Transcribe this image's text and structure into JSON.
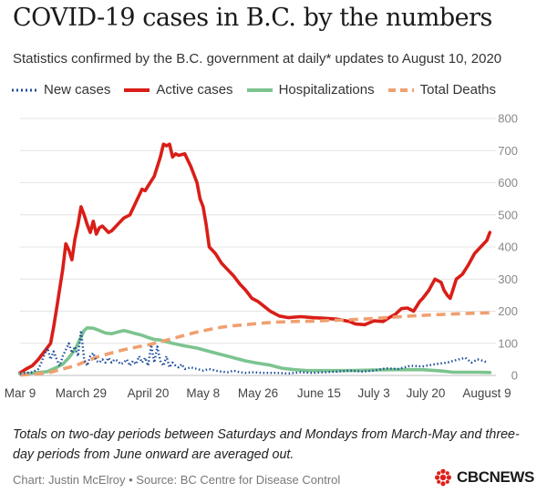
{
  "title": "COVID-19 cases in B.C. by the numbers",
  "subtitle": "Statistics confirmed by the B.C. government at daily* updates to August 10, 2020",
  "legend": [
    {
      "label": "New cases",
      "icon": "dotted-line-icon",
      "color": "#1f4e9e"
    },
    {
      "label": "Active cases",
      "icon": "solid-line-icon",
      "color": "#d91e18"
    },
    {
      "label": "Hospitalizations",
      "icon": "solid-line-icon",
      "color": "#7cc48f"
    },
    {
      "label": "Total Deaths",
      "icon": "dashed-line-icon",
      "color": "#f0a070"
    }
  ],
  "note": "Totals on two-day periods between Saturdays and Mondays from March-May and three-day periods from June onward are averaged out.",
  "credit": "Chart: Justin McElroy • Source: BC Centre for Disease Control",
  "logo": {
    "text": "CBCNEWS",
    "icon": "cbc-gem-icon",
    "color": "#e0201b"
  },
  "chart_data": {
    "type": "line",
    "title": "COVID-19 cases in B.C. by the numbers",
    "xlabel": "",
    "ylabel": "",
    "xlim": [
      0,
      156
    ],
    "ylim": [
      0,
      800
    ],
    "grid": true,
    "legend_position": "top",
    "x_ticks": [
      {
        "day": 0,
        "label": "Mar 9"
      },
      {
        "day": 20,
        "label": "March 29"
      },
      {
        "day": 42,
        "label": "April 20"
      },
      {
        "day": 60,
        "label": "May 8"
      },
      {
        "day": 78,
        "label": "May 26"
      },
      {
        "day": 98,
        "label": "June 15"
      },
      {
        "day": 116,
        "label": "July 3"
      },
      {
        "day": 133,
        "label": "July 20"
      },
      {
        "day": 153,
        "label": "August 9"
      }
    ],
    "y_ticks": [
      0,
      100,
      200,
      300,
      400,
      500,
      600,
      700,
      800
    ],
    "series": [
      {
        "name": "Active cases",
        "color": "#d91e18",
        "style": "solid",
        "points": [
          [
            0,
            8
          ],
          [
            2,
            20
          ],
          [
            4,
            30
          ],
          [
            6,
            50
          ],
          [
            8,
            75
          ],
          [
            10,
            100
          ],
          [
            11,
            150
          ],
          [
            12,
            210
          ],
          [
            13,
            270
          ],
          [
            14,
            330
          ],
          [
            15,
            410
          ],
          [
            16,
            390
          ],
          [
            17,
            360
          ],
          [
            18,
            425
          ],
          [
            19,
            470
          ],
          [
            20,
            525
          ],
          [
            21,
            500
          ],
          [
            22,
            470
          ],
          [
            23,
            445
          ],
          [
            24,
            480
          ],
          [
            25,
            440
          ],
          [
            26,
            460
          ],
          [
            27,
            465
          ],
          [
            28,
            455
          ],
          [
            29,
            445
          ],
          [
            30,
            450
          ],
          [
            32,
            470
          ],
          [
            34,
            490
          ],
          [
            36,
            500
          ],
          [
            38,
            540
          ],
          [
            40,
            580
          ],
          [
            41,
            575
          ],
          [
            42,
            590
          ],
          [
            44,
            620
          ],
          [
            46,
            680
          ],
          [
            47,
            720
          ],
          [
            48,
            715
          ],
          [
            49,
            720
          ],
          [
            50,
            680
          ],
          [
            51,
            690
          ],
          [
            52,
            685
          ],
          [
            54,
            690
          ],
          [
            55,
            670
          ],
          [
            56,
            650
          ],
          [
            58,
            600
          ],
          [
            59,
            550
          ],
          [
            60,
            525
          ],
          [
            61,
            470
          ],
          [
            62,
            400
          ],
          [
            64,
            380
          ],
          [
            66,
            350
          ],
          [
            68,
            330
          ],
          [
            70,
            310
          ],
          [
            72,
            285
          ],
          [
            74,
            265
          ],
          [
            76,
            240
          ],
          [
            78,
            230
          ],
          [
            80,
            215
          ],
          [
            82,
            200
          ],
          [
            85,
            185
          ],
          [
            88,
            180
          ],
          [
            92,
            183
          ],
          [
            96,
            180
          ],
          [
            100,
            178
          ],
          [
            104,
            175
          ],
          [
            108,
            168
          ],
          [
            110,
            160
          ],
          [
            113,
            158
          ],
          [
            116,
            170
          ],
          [
            119,
            168
          ],
          [
            121,
            180
          ],
          [
            123,
            190
          ],
          [
            125,
            208
          ],
          [
            127,
            210
          ],
          [
            129,
            200
          ],
          [
            131,
            230
          ],
          [
            132,
            240
          ],
          [
            134,
            265
          ],
          [
            136,
            300
          ],
          [
            138,
            290
          ],
          [
            139,
            265
          ],
          [
            140,
            250
          ],
          [
            141,
            240
          ],
          [
            142,
            270
          ],
          [
            143,
            300
          ],
          [
            145,
            315
          ],
          [
            147,
            345
          ],
          [
            149,
            380
          ],
          [
            151,
            400
          ],
          [
            153,
            420
          ],
          [
            154,
            445
          ]
        ]
      },
      {
        "name": "Hospitalizations",
        "color": "#7cc48f",
        "style": "solid",
        "points": [
          [
            0,
            4
          ],
          [
            5,
            8
          ],
          [
            9,
            12
          ],
          [
            12,
            25
          ],
          [
            14,
            35
          ],
          [
            16,
            55
          ],
          [
            18,
            80
          ],
          [
            19,
            100
          ],
          [
            20,
            120
          ],
          [
            21,
            140
          ],
          [
            22,
            148
          ],
          [
            24,
            147
          ],
          [
            26,
            140
          ],
          [
            28,
            132
          ],
          [
            30,
            130
          ],
          [
            32,
            135
          ],
          [
            34,
            140
          ],
          [
            36,
            135
          ],
          [
            38,
            130
          ],
          [
            40,
            125
          ],
          [
            42,
            118
          ],
          [
            44,
            112
          ],
          [
            46,
            110
          ],
          [
            50,
            100
          ],
          [
            54,
            92
          ],
          [
            58,
            85
          ],
          [
            62,
            75
          ],
          [
            66,
            65
          ],
          [
            70,
            55
          ],
          [
            74,
            45
          ],
          [
            78,
            38
          ],
          [
            82,
            32
          ],
          [
            86,
            22
          ],
          [
            90,
            18
          ],
          [
            94,
            15
          ],
          [
            100,
            15
          ],
          [
            108,
            15
          ],
          [
            116,
            17
          ],
          [
            124,
            18
          ],
          [
            132,
            18
          ],
          [
            138,
            14
          ],
          [
            142,
            10
          ],
          [
            146,
            10
          ],
          [
            150,
            10
          ],
          [
            154,
            9
          ]
        ]
      },
      {
        "name": "Total Deaths",
        "color": "#f0a070",
        "style": "dashed",
        "points": [
          [
            0,
            1
          ],
          [
            6,
            5
          ],
          [
            10,
            10
          ],
          [
            14,
            20
          ],
          [
            18,
            30
          ],
          [
            22,
            45
          ],
          [
            26,
            60
          ],
          [
            30,
            70
          ],
          [
            34,
            80
          ],
          [
            38,
            88
          ],
          [
            42,
            95
          ],
          [
            46,
            105
          ],
          [
            50,
            115
          ],
          [
            54,
            125
          ],
          [
            58,
            135
          ],
          [
            62,
            143
          ],
          [
            66,
            150
          ],
          [
            70,
            155
          ],
          [
            74,
            158
          ],
          [
            78,
            162
          ],
          [
            84,
            166
          ],
          [
            90,
            168
          ],
          [
            96,
            169
          ],
          [
            104,
            172
          ],
          [
            112,
            175
          ],
          [
            120,
            180
          ],
          [
            128,
            185
          ],
          [
            136,
            189
          ],
          [
            144,
            192
          ],
          [
            150,
            194
          ],
          [
            154,
            195
          ]
        ]
      },
      {
        "name": "New cases",
        "color": "#1f4e9e",
        "style": "dotted",
        "points": [
          [
            0,
            5
          ],
          [
            2,
            8
          ],
          [
            4,
            10
          ],
          [
            5,
            15
          ],
          [
            6,
            20
          ],
          [
            7,
            40
          ],
          [
            8,
            65
          ],
          [
            9,
            85
          ],
          [
            10,
            50
          ],
          [
            11,
            75
          ],
          [
            12,
            50
          ],
          [
            13,
            30
          ],
          [
            14,
            60
          ],
          [
            15,
            80
          ],
          [
            16,
            100
          ],
          [
            17,
            70
          ],
          [
            18,
            90
          ],
          [
            19,
            60
          ],
          [
            20,
            140
          ],
          [
            21,
            50
          ],
          [
            22,
            30
          ],
          [
            23,
            60
          ],
          [
            24,
            70
          ],
          [
            25,
            45
          ],
          [
            26,
            40
          ],
          [
            27,
            50
          ],
          [
            28,
            40
          ],
          [
            29,
            55
          ],
          [
            30,
            40
          ],
          [
            31,
            50
          ],
          [
            32,
            45
          ],
          [
            33,
            35
          ],
          [
            34,
            40
          ],
          [
            35,
            50
          ],
          [
            36,
            30
          ],
          [
            37,
            45
          ],
          [
            38,
            35
          ],
          [
            39,
            60
          ],
          [
            40,
            40
          ],
          [
            41,
            55
          ],
          [
            42,
            30
          ],
          [
            43,
            95
          ],
          [
            44,
            40
          ],
          [
            45,
            90
          ],
          [
            46,
            45
          ],
          [
            47,
            30
          ],
          [
            48,
            60
          ],
          [
            49,
            25
          ],
          [
            50,
            40
          ],
          [
            51,
            30
          ],
          [
            52,
            25
          ],
          [
            53,
            35
          ],
          [
            54,
            20
          ],
          [
            56,
            25
          ],
          [
            58,
            20
          ],
          [
            60,
            15
          ],
          [
            62,
            20
          ],
          [
            64,
            15
          ],
          [
            66,
            12
          ],
          [
            68,
            10
          ],
          [
            70,
            15
          ],
          [
            72,
            10
          ],
          [
            74,
            8
          ],
          [
            76,
            10
          ],
          [
            80,
            8
          ],
          [
            84,
            8
          ],
          [
            88,
            6
          ],
          [
            92,
            10
          ],
          [
            96,
            8
          ],
          [
            100,
            10
          ],
          [
            104,
            12
          ],
          [
            108,
            15
          ],
          [
            112,
            12
          ],
          [
            116,
            15
          ],
          [
            120,
            22
          ],
          [
            124,
            20
          ],
          [
            128,
            30
          ],
          [
            132,
            28
          ],
          [
            136,
            35
          ],
          [
            140,
            40
          ],
          [
            143,
            48
          ],
          [
            146,
            55
          ],
          [
            148,
            40
          ],
          [
            150,
            50
          ],
          [
            152,
            45
          ],
          [
            153,
            40
          ]
        ]
      }
    ]
  }
}
